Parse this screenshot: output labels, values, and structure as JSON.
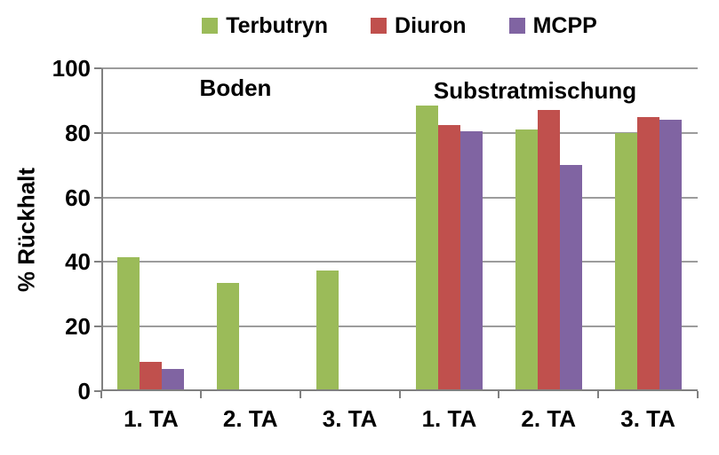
{
  "colors": {
    "terbutryn": "#9BBB59",
    "diuron": "#C0504D",
    "mcpp": "#8064A2",
    "gridline": "#9C9C9C",
    "axis": "#808080",
    "text": "#000000",
    "background": "#FFFFFF"
  },
  "legend": {
    "items": [
      {
        "label": "Terbutryn",
        "color": "#9BBB59"
      },
      {
        "label": "Diuron",
        "color": "#C0504D"
      },
      {
        "label": "MCPP",
        "color": "#8064A2"
      }
    ]
  },
  "chart_data": {
    "type": "bar",
    "categories": [
      "1. TA",
      "2. TA",
      "3. TA",
      "1. TA",
      "2. TA",
      "3. TA"
    ],
    "group_labels": [
      "Boden",
      "Substratmischung"
    ],
    "series": [
      {
        "name": "Terbutryn",
        "color": "#9BBB59",
        "values": [
          41.5,
          33.5,
          37.5,
          88.5,
          81,
          80
        ]
      },
      {
        "name": "Diuron",
        "color": "#C0504D",
        "values": [
          9,
          0,
          0,
          82.5,
          87,
          85
        ]
      },
      {
        "name": "MCPP",
        "color": "#8064A2",
        "values": [
          7,
          0,
          0,
          80.5,
          70,
          84
        ]
      }
    ],
    "title": "",
    "xlabel": "",
    "ylabel": "% Rückhalt",
    "ylim": [
      0,
      100
    ],
    "yticks": [
      0,
      20,
      40,
      60,
      80,
      100
    ],
    "grid": true,
    "legend_position": "top"
  }
}
